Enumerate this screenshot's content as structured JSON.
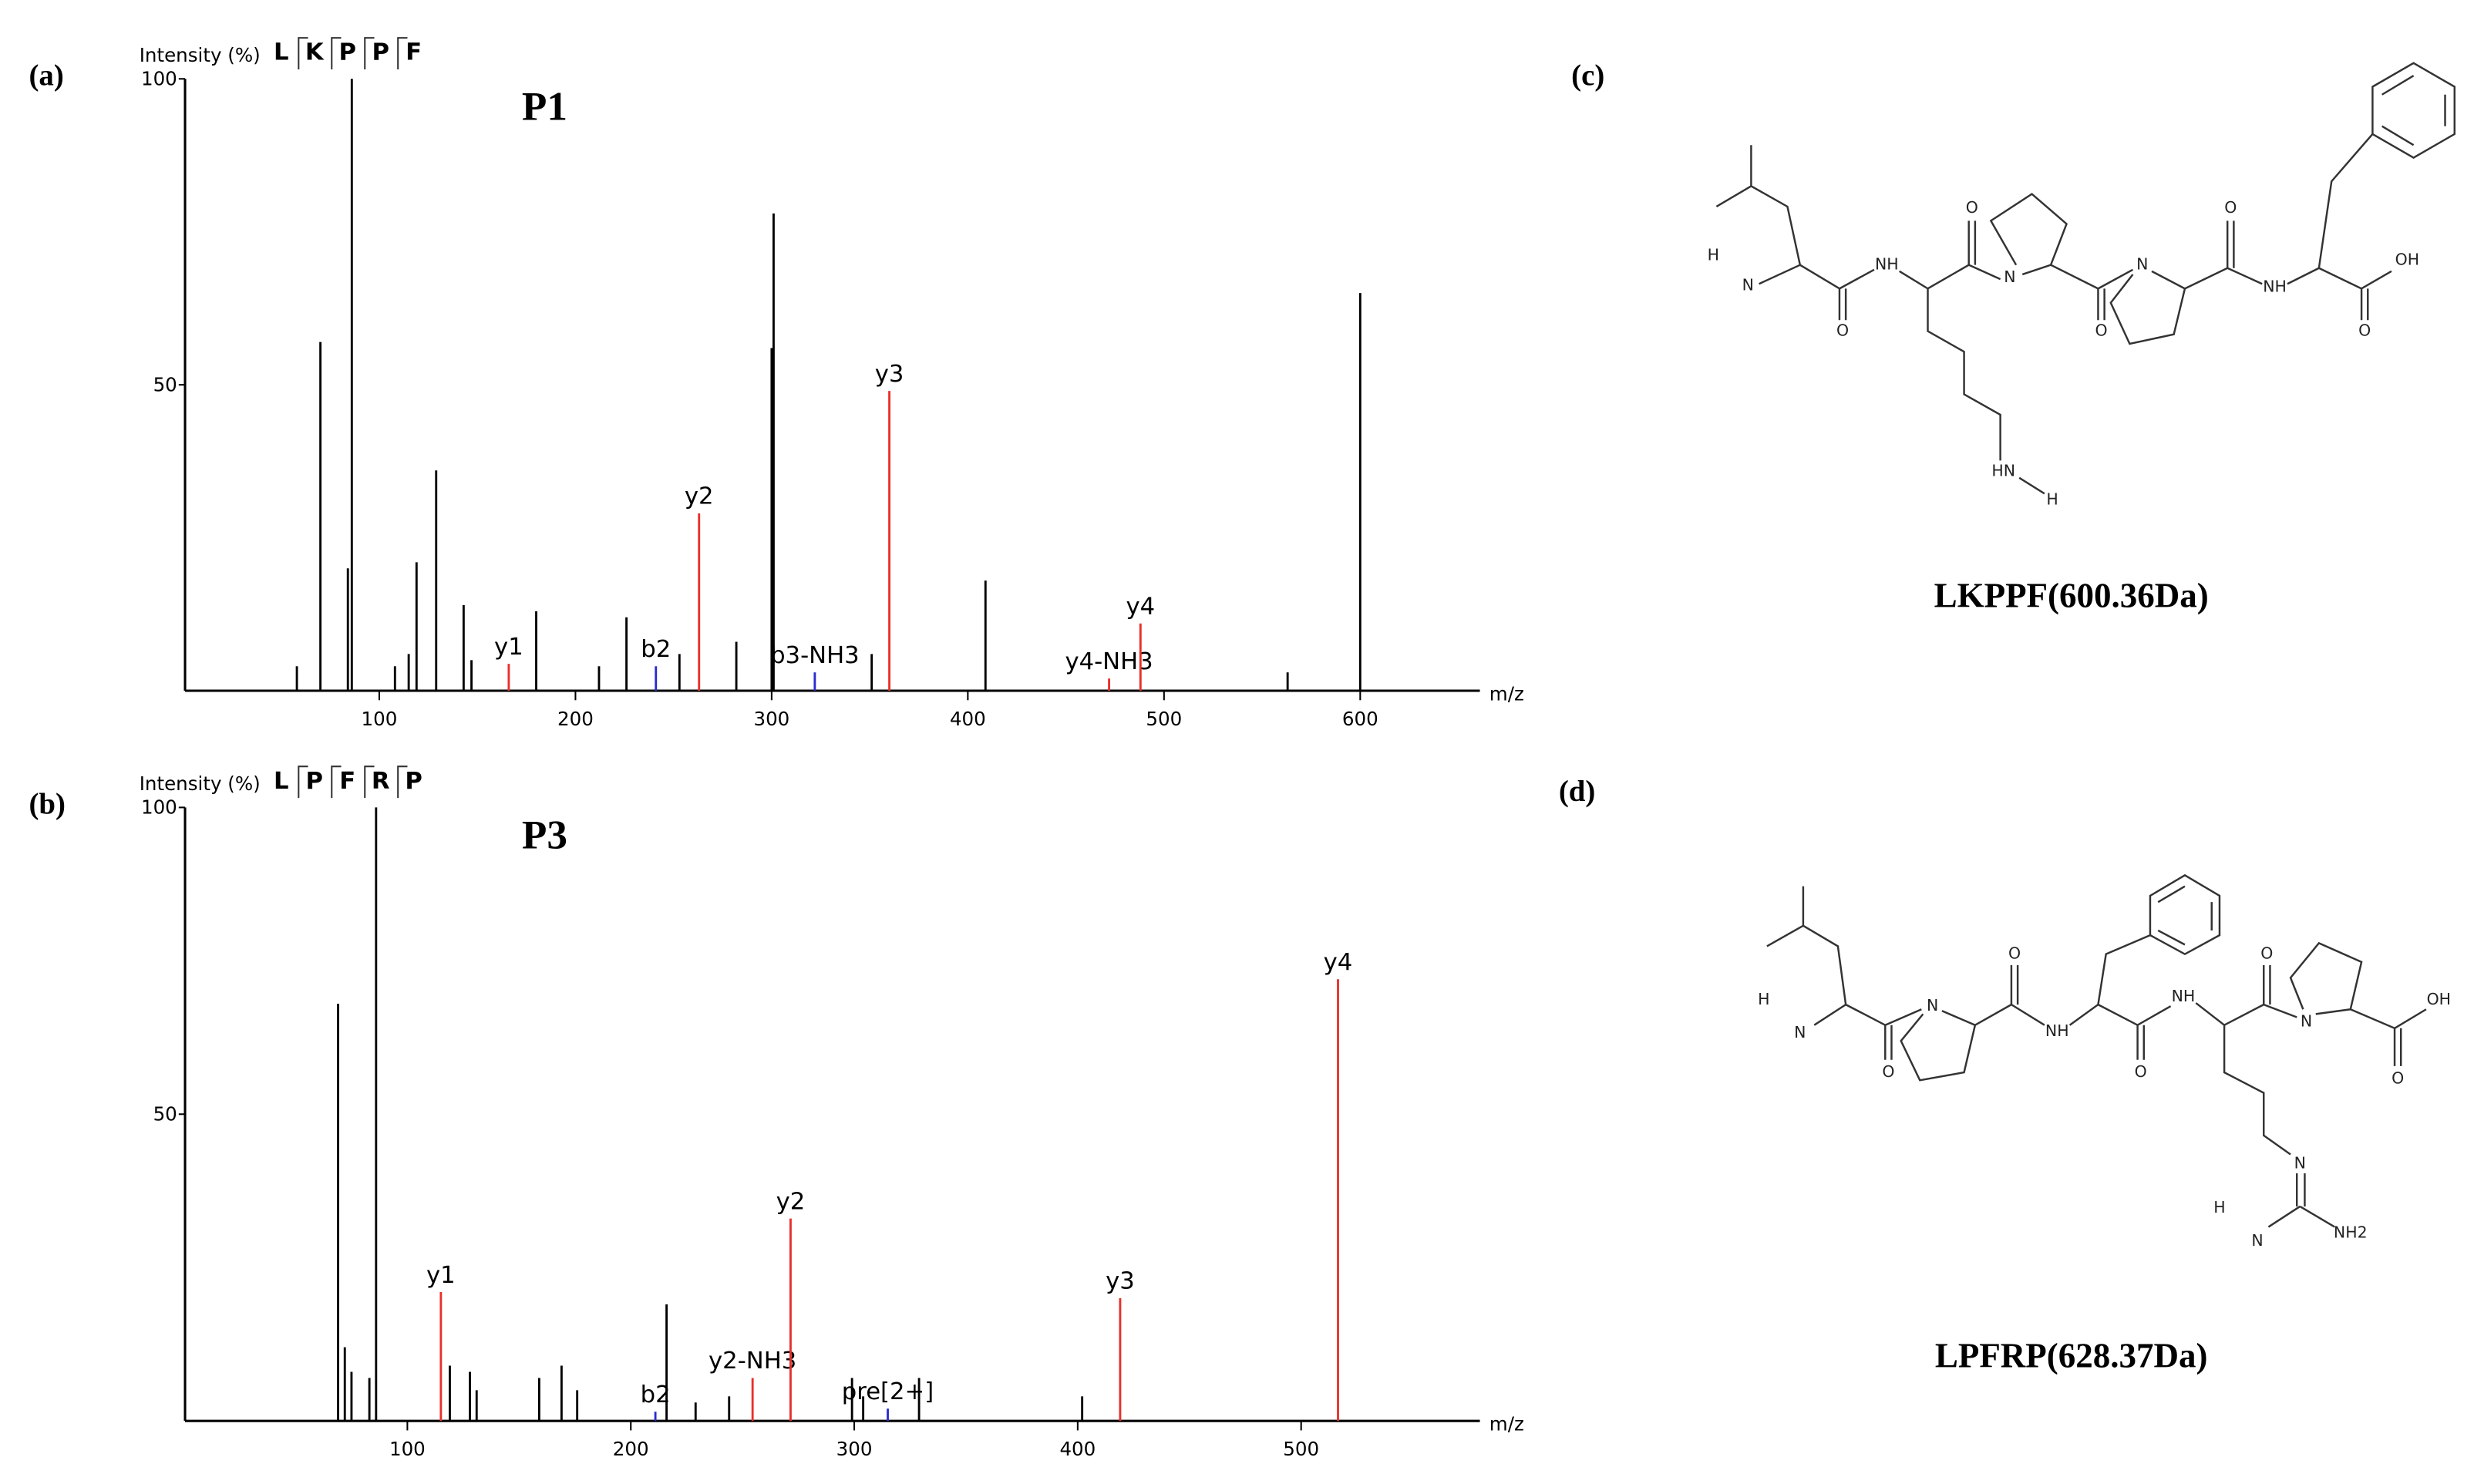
{
  "chart_data": [
    {
      "type": "stem",
      "panel": "(a)",
      "title": "P1",
      "y_label": "Intensity (%)",
      "x_label": "m/z",
      "sequence": [
        "L",
        "K",
        "P",
        "P",
        "F"
      ],
      "xlim": [
        1,
        661
      ],
      "xticks": [
        100,
        200,
        300,
        400,
        500,
        600
      ],
      "ylim": [
        0,
        100
      ],
      "yticks": [
        50,
        100
      ],
      "series": [
        {
          "color": "#000000",
          "x": [
            58,
            70,
            84,
            86,
            108,
            115,
            119,
            129,
            143,
            147,
            180,
            212,
            226,
            253,
            282,
            300,
            301,
            351,
            409,
            563,
            600
          ],
          "values": [
            4,
            57,
            20,
            100,
            4,
            6,
            21,
            36,
            14,
            5,
            13,
            4,
            12,
            6,
            8,
            56,
            78,
            6,
            18,
            3,
            65
          ]
        },
        {
          "color": "#e8302a",
          "x": [
            166,
            263,
            360,
            472,
            488
          ],
          "values": [
            4.4,
            29,
            49,
            2,
            11
          ],
          "labels": [
            "y1",
            "y2",
            "y3",
            "y4-NH3",
            "y4"
          ]
        },
        {
          "color": "#2b2bd0",
          "x": [
            241,
            322
          ],
          "values": [
            4,
            3
          ],
          "labels": [
            "b2",
            "b3-NH3"
          ]
        }
      ]
    },
    {
      "type": "stem",
      "panel": "(b)",
      "title": "P3",
      "y_label": "Intensity (%)",
      "x_label": "m/z",
      "sequence": [
        "L",
        "P",
        "F",
        "R",
        "P"
      ],
      "xlim": [
        0.5,
        580
      ],
      "xticks": [
        100,
        200,
        300,
        400,
        500
      ],
      "ylim": [
        0,
        100
      ],
      "yticks": [
        50,
        100
      ],
      "series": [
        {
          "color": "#000000",
          "x": [
            69,
            72,
            75,
            83,
            86,
            119,
            128,
            131,
            159,
            169,
            176,
            216,
            229,
            244,
            299,
            304,
            329,
            402
          ],
          "values": [
            68,
            12,
            8,
            7,
            100,
            9,
            8,
            5,
            7,
            9,
            5,
            19,
            3,
            4,
            7,
            4,
            7,
            4
          ]
        },
        {
          "color": "#e8302a",
          "x": [
            115,
            254.5,
            271.5,
            419,
            516.5
          ],
          "values": [
            21,
            7,
            33,
            20,
            72
          ],
          "labels": [
            "y1",
            "y2-NH3",
            "y2",
            "y3",
            "y4"
          ]
        },
        {
          "color": "#2b2bd0",
          "x": [
            211,
            315
          ],
          "values": [
            1.5,
            2
          ],
          "labels": [
            "b2",
            "pre[2+]"
          ]
        }
      ]
    }
  ],
  "structures": [
    {
      "panel": "(c)",
      "caption": "LKPPF(600.36Da)",
      "atoms": [
        "H",
        "N",
        "O",
        "NH",
        "O",
        "N",
        "O",
        "N",
        "O",
        "NH",
        "OH",
        "O",
        "HN",
        "H"
      ]
    },
    {
      "panel": "(d)",
      "caption": "LPFRP(628.37Da)",
      "atoms": [
        "H",
        "N",
        "O",
        "N",
        "O",
        "NH",
        "O",
        "NH",
        "O",
        "N",
        "OH",
        "O",
        "N",
        "H",
        "N",
        "NH2"
      ]
    }
  ]
}
